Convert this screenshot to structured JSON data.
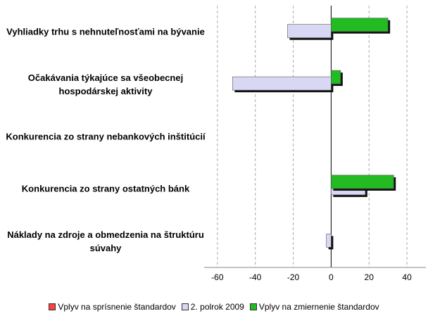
{
  "chart_data": {
    "type": "hbar",
    "categories": [
      "Vyhliadky trhu s nehnuteľnosťami na bývanie",
      "Očakávania týkajúce sa všeobecnej hospodárskej aktivity",
      "Konkurencia zo strany nebankových inštitúcií",
      "Konkurencia zo strany ostatných bánk",
      "Náklady na zdroje a obmedzenia na štruktúru súvahy"
    ],
    "series": [
      {
        "name": "Vplyv na sprísnenie štandardov",
        "color": "#ff4040",
        "values": [
          0,
          0,
          0,
          0,
          0
        ]
      },
      {
        "name": "2. polrok 2009",
        "color": "#d8d8f4",
        "values": [
          -23,
          -52,
          0,
          18,
          -2.5
        ]
      },
      {
        "name": "Vplyv na zmiernenie štandardov",
        "color": "#22bb22",
        "values": [
          30,
          5,
          0,
          33,
          0
        ]
      }
    ],
    "xlim": [
      -67,
      50
    ],
    "xticks": [
      -60,
      -40,
      -20,
      0,
      20,
      40
    ],
    "grid": true
  }
}
